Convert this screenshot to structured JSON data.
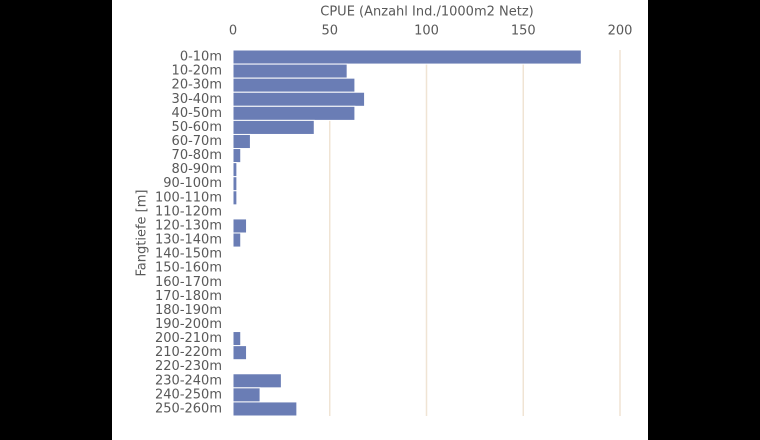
{
  "chart_data": {
    "type": "bar",
    "orientation": "horizontal",
    "title": "CPUE (Anzahl Ind./1000m2 Netz)",
    "y_label": "Fangtiefe [m]",
    "categories": [
      "0-10m",
      "10-20m",
      "20-30m",
      "30-40m",
      "40-50m",
      "50-60m",
      "60-70m",
      "70-80m",
      "80-90m",
      "90-100m",
      "100-110m",
      "110-120m",
      "120-130m",
      "130-140m",
      "140-150m",
      "150-160m",
      "160-170m",
      "170-180m",
      "180-190m",
      "190-200m",
      "200-210m",
      "210-220m",
      "220-230m",
      "230-240m",
      "240-250m",
      "250-260m"
    ],
    "values": [
      180,
      59,
      63,
      68,
      63,
      42,
      9,
      4,
      2,
      2,
      2,
      0,
      7,
      4,
      0,
      0,
      0,
      0,
      0,
      0,
      4,
      7,
      0,
      25,
      14,
      33
    ],
    "color": "#6a7db5",
    "xlim": [
      0,
      200
    ],
    "xticks": [
      0,
      50,
      100,
      150,
      200
    ],
    "grid": true
  }
}
